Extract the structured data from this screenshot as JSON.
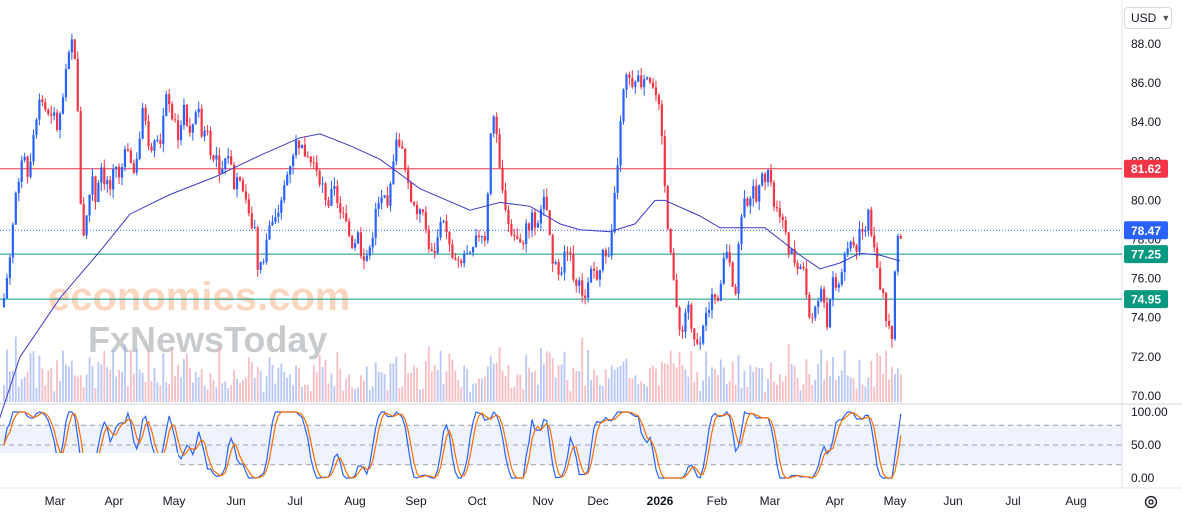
{
  "currency_selector": {
    "label": "USD",
    "icon": "chevron-down-icon"
  },
  "settings": {
    "icon": "gear-icon"
  },
  "watermark": {
    "line1": "economies.com",
    "line2": "FxNewsToday"
  },
  "chart_data": [
    {
      "type": "candlestick",
      "title": "",
      "ylim": [
        69.3,
        89.0
      ],
      "y_ticks": [
        "88.00",
        "86.00",
        "84.00",
        "82.00",
        "80.00",
        "78.00",
        "76.00",
        "74.00",
        "72.00",
        "70.00"
      ],
      "x_labels": [
        "Mar",
        "Apr",
        "May",
        "Jun",
        "Jul",
        "Aug",
        "Sep",
        "Oct",
        "Nov",
        "Dec",
        "2026",
        "Feb",
        "Mar",
        "Apr",
        "May",
        "Jun",
        "Jul",
        "Aug"
      ],
      "grid": false,
      "colors": {
        "up": "#2962ff",
        "down": "#f23645",
        "ma": "#3c3cc8",
        "volume_up": "#9fb6f5",
        "volume_down": "#f5a7ad"
      },
      "keypoints": [
        [
          0,
          73.2
        ],
        [
          4,
          75.0
        ],
        [
          10,
          77.2
        ],
        [
          16,
          80.5
        ],
        [
          22,
          82.2
        ],
        [
          28,
          81.3
        ],
        [
          34,
          83.8
        ],
        [
          40,
          85.4
        ],
        [
          46,
          84.6
        ],
        [
          50,
          83.9
        ],
        [
          54,
          84.3
        ],
        [
          58,
          83.6
        ],
        [
          62,
          84.8
        ],
        [
          66,
          86.4
        ],
        [
          72,
          88.1
        ],
        [
          76,
          87.3
        ],
        [
          80,
          80.4
        ],
        [
          84,
          78.2
        ],
        [
          88,
          79.6
        ],
        [
          92,
          81.6
        ],
        [
          96,
          79.8
        ],
        [
          100,
          82.1
        ],
        [
          104,
          81.2
        ],
        [
          110,
          80.6
        ],
        [
          116,
          81.8
        ],
        [
          120,
          80.8
        ],
        [
          126,
          83.5
        ],
        [
          132,
          81.5
        ],
        [
          138,
          82.6
        ],
        [
          144,
          84.9
        ],
        [
          150,
          82.6
        ],
        [
          156,
          83.8
        ],
        [
          160,
          83.0
        ],
        [
          166,
          85.2
        ],
        [
          172,
          84.3
        ],
        [
          178,
          83.4
        ],
        [
          184,
          84.6
        ],
        [
          190,
          83.2
        ],
        [
          196,
          84.8
        ],
        [
          202,
          83.6
        ],
        [
          206,
          83.9
        ],
        [
          210,
          82.8
        ],
        [
          216,
          82.2
        ],
        [
          222,
          81.5
        ],
        [
          228,
          82.5
        ],
        [
          234,
          80.9
        ],
        [
          240,
          81.4
        ],
        [
          246,
          80.2
        ],
        [
          250,
          78.5
        ],
        [
          254,
          79.2
        ],
        [
          258,
          76.3
        ],
        [
          262,
          76.8
        ],
        [
          266,
          77.9
        ],
        [
          270,
          78.9
        ],
        [
          274,
          78.6
        ],
        [
          280,
          79.8
        ],
        [
          286,
          81.1
        ],
        [
          292,
          82.4
        ],
        [
          298,
          83.1
        ],
        [
          304,
          82.5
        ],
        [
          310,
          82.0
        ],
        [
          316,
          81.8
        ],
        [
          322,
          80.9
        ],
        [
          328,
          79.8
        ],
        [
          334,
          80.5
        ],
        [
          340,
          79.6
        ],
        [
          346,
          78.7
        ],
        [
          352,
          77.8
        ],
        [
          358,
          78.2
        ],
        [
          364,
          76.8
        ],
        [
          370,
          77.6
        ],
        [
          376,
          79.4
        ],
        [
          382,
          80.3
        ],
        [
          388,
          79.2
        ],
        [
          394,
          82.6
        ],
        [
          400,
          83.2
        ],
        [
          404,
          81.7
        ],
        [
          410,
          80.5
        ],
        [
          416,
          79.3
        ],
        [
          420,
          79.8
        ],
        [
          426,
          78.4
        ],
        [
          432,
          77.1
        ],
        [
          438,
          78.0
        ],
        [
          442,
          79.6
        ],
        [
          448,
          77.8
        ],
        [
          454,
          76.9
        ],
        [
          460,
          76.4
        ],
        [
          464,
          77.3
        ],
        [
          470,
          76.9
        ],
        [
          476,
          77.8
        ],
        [
          480,
          78.5
        ],
        [
          486,
          78.1
        ],
        [
          490,
          83.6
        ],
        [
          494,
          84.4
        ],
        [
          498,
          82.2
        ],
        [
          502,
          80.4
        ],
        [
          506,
          79.8
        ],
        [
          510,
          78.4
        ],
        [
          516,
          78.1
        ],
        [
          520,
          77.5
        ],
        [
          526,
          78.6
        ],
        [
          532,
          79.1
        ],
        [
          538,
          78.6
        ],
        [
          544,
          79.9
        ],
        [
          548,
          79.3
        ],
        [
          552,
          76.5
        ],
        [
          556,
          77.3
        ],
        [
          560,
          76.3
        ],
        [
          566,
          77.9
        ],
        [
          572,
          76.5
        ],
        [
          578,
          75.9
        ],
        [
          584,
          75.1
        ],
        [
          590,
          76.6
        ],
        [
          596,
          76.2
        ],
        [
          602,
          77.1
        ],
        [
          608,
          76.9
        ],
        [
          612,
          78.1
        ],
        [
          616,
          81.0
        ],
        [
          620,
          83.5
        ],
        [
          624,
          85.7
        ],
        [
          628,
          86.3
        ],
        [
          632,
          86.1
        ],
        [
          636,
          86.6
        ],
        [
          640,
          85.9
        ],
        [
          646,
          86.8
        ],
        [
          650,
          86.2
        ],
        [
          656,
          85.3
        ],
        [
          660,
          84.2
        ],
        [
          666,
          79.8
        ],
        [
          668,
          78.8
        ],
        [
          672,
          77.1
        ],
        [
          676,
          74.3
        ],
        [
          680,
          73.2
        ],
        [
          684,
          73.9
        ],
        [
          688,
          74.6
        ],
        [
          692,
          72.8
        ],
        [
          696,
          72.3
        ],
        [
          700,
          73.1
        ],
        [
          706,
          73.8
        ],
        [
          710,
          74.5
        ],
        [
          716,
          75.4
        ],
        [
          720,
          75.0
        ],
        [
          724,
          76.9
        ],
        [
          728,
          77.8
        ],
        [
          732,
          76.2
        ],
        [
          736,
          75.1
        ],
        [
          740,
          79.4
        ],
        [
          744,
          79.7
        ],
        [
          748,
          80.2
        ],
        [
          752,
          80.5
        ],
        [
          756,
          79.9
        ],
        [
          760,
          80.8
        ],
        [
          764,
          81.3
        ],
        [
          768,
          81.5
        ],
        [
          772,
          80.2
        ],
        [
          776,
          79.4
        ],
        [
          780,
          79.6
        ],
        [
          784,
          78.5
        ],
        [
          788,
          77.8
        ],
        [
          792,
          77.2
        ],
        [
          796,
          76.8
        ],
        [
          800,
          76.2
        ],
        [
          804,
          76.7
        ],
        [
          808,
          74.5
        ],
        [
          812,
          73.8
        ],
        [
          816,
          74.4
        ],
        [
          820,
          75.3
        ],
        [
          824,
          74.9
        ],
        [
          828,
          73.5
        ],
        [
          832,
          75.8
        ],
        [
          836,
          75.4
        ],
        [
          840,
          76.3
        ],
        [
          844,
          77.1
        ],
        [
          848,
          77.5
        ],
        [
          852,
          78.1
        ],
        [
          856,
          77.4
        ],
        [
          860,
          78.6
        ],
        [
          864,
          78.0
        ],
        [
          868,
          79.6
        ],
        [
          872,
          78.3
        ],
        [
          876,
          76.7
        ],
        [
          880,
          75.9
        ],
        [
          884,
          74.6
        ],
        [
          888,
          73.8
        ],
        [
          892,
          73.0
        ],
        [
          894,
          74.8
        ],
        [
          896,
          78.2
        ],
        [
          900,
          77.9
        ],
        [
          903,
          78.5
        ]
      ],
      "moving_average": [
        [
          -2,
          68.6
        ],
        [
          20,
          72.0
        ],
        [
          60,
          75.0
        ],
        [
          100,
          77.4
        ],
        [
          130,
          79.3
        ],
        [
          170,
          80.3
        ],
        [
          215,
          81.2
        ],
        [
          260,
          82.3
        ],
        [
          300,
          83.2
        ],
        [
          320,
          83.4
        ],
        [
          350,
          82.8
        ],
        [
          380,
          82.1
        ],
        [
          420,
          80.6
        ],
        [
          470,
          79.5
        ],
        [
          500,
          79.9
        ],
        [
          530,
          79.7
        ],
        [
          560,
          78.8
        ],
        [
          580,
          78.5
        ],
        [
          610,
          78.4
        ],
        [
          635,
          78.8
        ],
        [
          655,
          80.0
        ],
        [
          665,
          80.0
        ],
        [
          700,
          79.2
        ],
        [
          720,
          78.6
        ],
        [
          740,
          78.6
        ],
        [
          765,
          78.6
        ],
        [
          780,
          78.0
        ],
        [
          800,
          77.2
        ],
        [
          820,
          76.5
        ],
        [
          840,
          76.8
        ],
        [
          860,
          77.3
        ],
        [
          880,
          77.2
        ],
        [
          900,
          76.9
        ]
      ],
      "price_lines": [
        {
          "value": "81.62",
          "color": "#f23645"
        },
        {
          "value": "78.47",
          "color": "#2962ff",
          "style": "dotted"
        },
        {
          "value": "77.25",
          "color": "#089981"
        },
        {
          "value": "74.95",
          "color": "#089981"
        }
      ],
      "volume_note": "volume histogram along the bottom of the price panel"
    },
    {
      "type": "line",
      "title": "",
      "ylim": [
        0,
        100
      ],
      "y_ticks": [
        "100.00",
        "50.00",
        "0.00"
      ],
      "levels": [
        80,
        50,
        20
      ],
      "series": [
        {
          "color": "#2962ff"
        },
        {
          "color": "#ff6d00"
        }
      ]
    }
  ]
}
